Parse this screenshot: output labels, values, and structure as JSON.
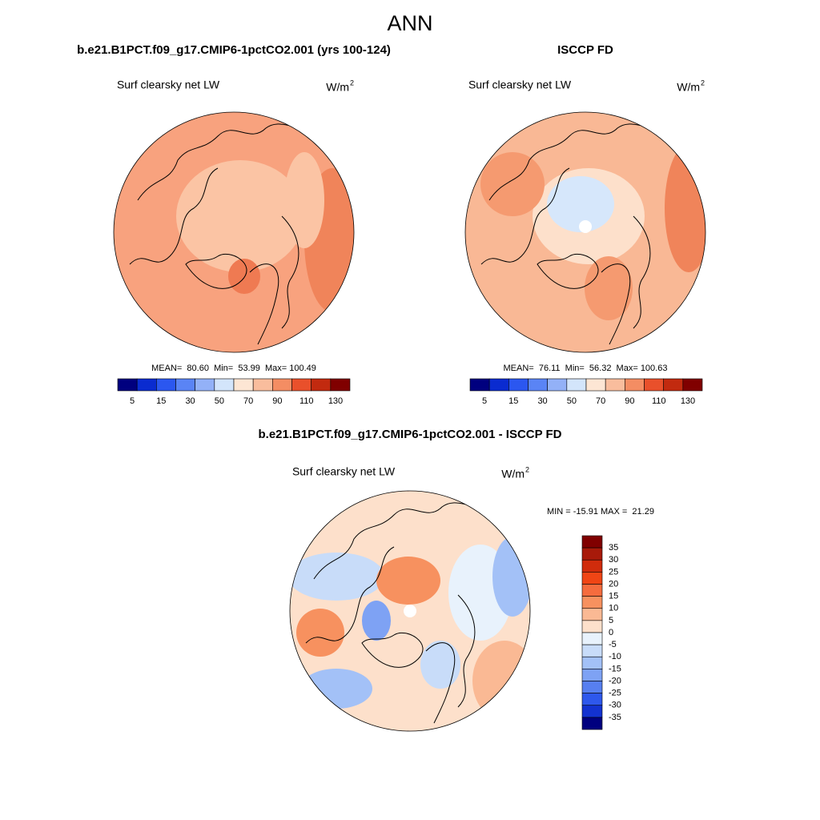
{
  "title": "ANN",
  "panels": [
    {
      "title": "b.e21.B1PCT.f09_g17.CMIP6-1pctCO2.001 (yrs 100-124)",
      "field": "Surf clearsky net LW",
      "units": "W/m",
      "units_sup": "2",
      "stats": "MEAN=  80.60  Min=  53.99  Max= 100.49",
      "colorbar": {
        "labels": [
          5,
          15,
          30,
          50,
          70,
          90,
          110,
          130
        ],
        "colors": [
          "#00007f",
          "#0a2bd0",
          "#2b57f0",
          "#5a84f5",
          "#93b1f7",
          "#d3e5fb",
          "#fde6d4",
          "#f9bd9d",
          "#f48d63",
          "#e9502b",
          "#c22a0f",
          "#800000"
        ]
      }
    },
    {
      "title": "ISCCP FD",
      "field": "Surf clearsky net LW",
      "units": "W/m",
      "units_sup": "2",
      "stats": "MEAN=  76.11  Min=  56.32  Max= 100.63",
      "colorbar": {
        "labels": [
          5,
          15,
          30,
          50,
          70,
          90,
          110,
          130
        ],
        "colors": [
          "#00007f",
          "#0a2bd0",
          "#2b57f0",
          "#5a84f5",
          "#93b1f7",
          "#d3e5fb",
          "#fde6d4",
          "#f9bd9d",
          "#f48d63",
          "#e9502b",
          "#c22a0f",
          "#800000"
        ]
      }
    }
  ],
  "difference": {
    "title": "b.e21.B1PCT.f09_g17.CMIP6-1pctCO2.001 - ISCCP FD",
    "field": "Surf clearsky net LW",
    "units": "W/m",
    "units_sup": "2",
    "stats": "MIN = -15.91 MAX =  21.29",
    "colorbar": {
      "labels": [
        35,
        30,
        25,
        20,
        15,
        10,
        5,
        0,
        -5,
        -10,
        -15,
        -20,
        -25,
        -30,
        -35
      ],
      "colors": [
        "#800000",
        "#a81a0a",
        "#d02c0c",
        "#f04515",
        "#f56c3e",
        "#f7915f",
        "#fab994",
        "#fde0cb",
        "#e8f2fc",
        "#c8dcf9",
        "#a3c1f7",
        "#7ea2f4",
        "#577ff0",
        "#2e58ec",
        "#1332d0",
        "#00007f"
      ]
    }
  }
}
